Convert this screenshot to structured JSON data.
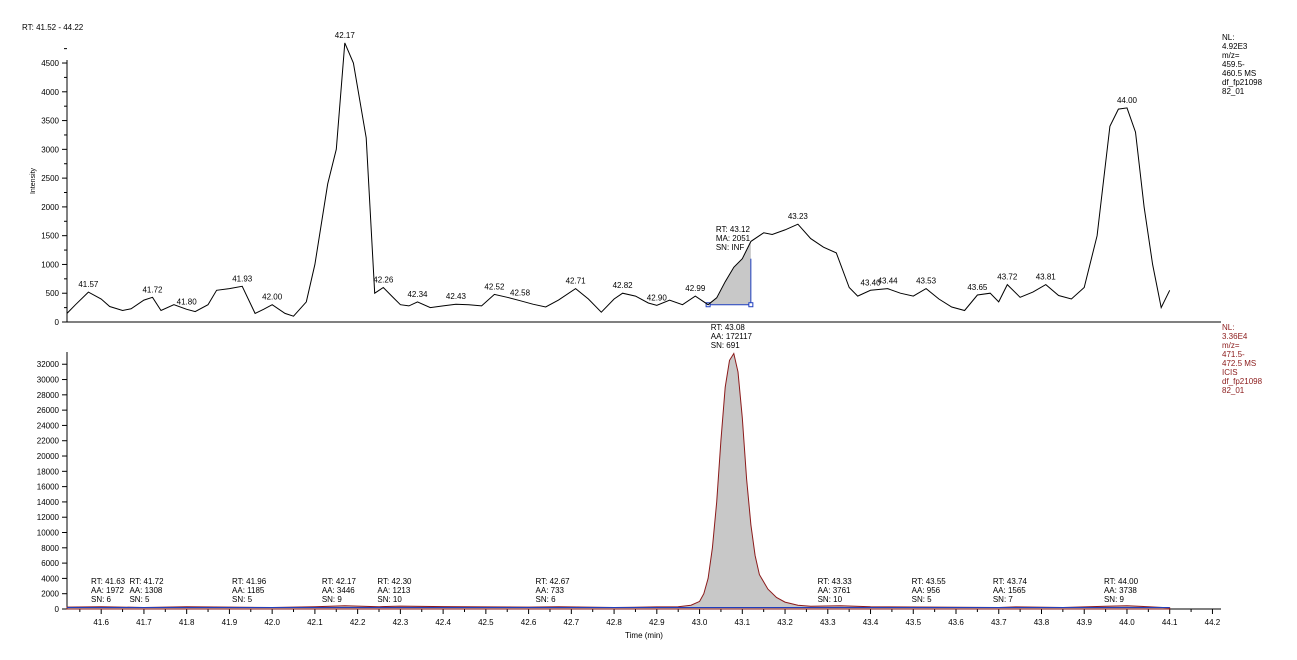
{
  "header": {
    "rt_range": "RT: 41.52 - 44.22"
  },
  "colors": {
    "axis": "#000000",
    "trace": "#000000",
    "fill": "#c8c8c8",
    "fill_edge": "#8b1a1a",
    "baseline": "#1f3fbf",
    "info_top": "#000000",
    "info_bottom": "#8b1a1a"
  },
  "chart_data": [
    {
      "type": "line",
      "ylabel": "Intensity",
      "xlim": [
        41.52,
        44.22
      ],
      "ylim": [
        0,
        4900
      ],
      "yticks": [
        0,
        500,
        1000,
        1500,
        2000,
        2500,
        3000,
        3500,
        4000,
        4500
      ],
      "info": [
        "NL:",
        "4.92E3",
        "m/z=",
        "459.5-",
        "460.5  MS",
        "df_fp21098",
        "82_01"
      ],
      "x": [
        41.52,
        41.54,
        41.57,
        41.6,
        41.62,
        41.65,
        41.67,
        41.7,
        41.72,
        41.74,
        41.77,
        41.8,
        41.82,
        41.85,
        41.87,
        41.9,
        41.93,
        41.96,
        41.98,
        42.0,
        42.03,
        42.05,
        42.08,
        42.1,
        42.13,
        42.15,
        42.17,
        42.19,
        42.22,
        42.24,
        42.26,
        42.28,
        42.3,
        42.32,
        42.34,
        42.37,
        42.4,
        42.43,
        42.46,
        42.49,
        42.52,
        42.55,
        42.58,
        42.61,
        42.64,
        42.67,
        42.71,
        42.74,
        42.77,
        42.8,
        42.82,
        42.85,
        42.88,
        42.9,
        42.93,
        42.96,
        42.99,
        43.02,
        43.04,
        43.06,
        43.08,
        43.1,
        43.12,
        43.15,
        43.17,
        43.2,
        43.23,
        43.26,
        43.29,
        43.32,
        43.35,
        43.37,
        43.4,
        43.44,
        43.47,
        43.5,
        43.53,
        43.56,
        43.59,
        43.62,
        43.65,
        43.68,
        43.7,
        43.72,
        43.75,
        43.78,
        43.81,
        43.84,
        43.87,
        43.9,
        43.93,
        43.96,
        43.98,
        44.0,
        44.02,
        44.04,
        44.06,
        44.08,
        44.1
      ],
      "y": [
        150,
        300,
        520,
        400,
        270,
        200,
        230,
        380,
        430,
        200,
        300,
        220,
        180,
        300,
        550,
        580,
        620,
        150,
        220,
        300,
        150,
        100,
        350,
        1000,
        2400,
        3000,
        4850,
        4500,
        3200,
        500,
        600,
        450,
        300,
        280,
        350,
        250,
        280,
        310,
        300,
        280,
        480,
        430,
        370,
        310,
        260,
        380,
        580,
        400,
        170,
        400,
        500,
        450,
        330,
        290,
        380,
        300,
        450,
        300,
        420,
        700,
        950,
        1100,
        1400,
        1550,
        1520,
        1600,
        1700,
        1450,
        1300,
        1200,
        600,
        450,
        550,
        580,
        500,
        450,
        580,
        400,
        260,
        200,
        470,
        500,
        350,
        650,
        430,
        520,
        650,
        460,
        400,
        600,
        1500,
        3400,
        3700,
        3720,
        3300,
        2000,
        1000,
        250,
        550
      ],
      "peak_labels": [
        [
          41.57,
          "41.57"
        ],
        [
          41.72,
          "41.72"
        ],
        [
          41.8,
          "41.80"
        ],
        [
          41.93,
          "41.93"
        ],
        [
          42.0,
          "42.00"
        ],
        [
          42.17,
          "42.17"
        ],
        [
          42.26,
          "42.26"
        ],
        [
          42.34,
          "42.34"
        ],
        [
          42.43,
          "42.43"
        ],
        [
          42.52,
          "42.52"
        ],
        [
          42.58,
          "42.58"
        ],
        [
          42.71,
          "42.71"
        ],
        [
          42.82,
          "42.82"
        ],
        [
          42.9,
          "42.90"
        ],
        [
          42.99,
          "42.99"
        ],
        [
          43.23,
          "43.23"
        ],
        [
          43.4,
          "43.40"
        ],
        [
          43.44,
          "43.44"
        ],
        [
          43.53,
          "43.53"
        ],
        [
          43.65,
          "43.65"
        ],
        [
          43.72,
          "43.72"
        ],
        [
          43.81,
          "43.81"
        ],
        [
          44.0,
          "44.00"
        ]
      ],
      "integrated_peak": {
        "rt": 43.12,
        "start": 43.02,
        "end": 43.12,
        "lines": [
          "RT: 43.12",
          "MA: 2051",
          "SN: INF"
        ]
      }
    },
    {
      "type": "area",
      "xlabel": "Time (min)",
      "xlim": [
        41.52,
        44.22
      ],
      "ylim": [
        0,
        33600
      ],
      "xticks": [
        41.6,
        41.7,
        41.8,
        41.9,
        42.0,
        42.1,
        42.2,
        42.3,
        42.4,
        42.5,
        42.6,
        42.7,
        42.8,
        42.9,
        43.0,
        43.1,
        43.2,
        43.3,
        43.4,
        43.5,
        43.6,
        43.7,
        43.8,
        43.9,
        44.0,
        44.1,
        44.2
      ],
      "yticks": [
        0,
        2000,
        4000,
        6000,
        8000,
        10000,
        12000,
        14000,
        16000,
        18000,
        20000,
        22000,
        24000,
        26000,
        28000,
        30000,
        32000
      ],
      "info": [
        "NL:",
        "3.36E4",
        "m/z=",
        "471.5-",
        "472.5  MS",
        "ICIS",
        "df_fp21098",
        "82_01"
      ],
      "x": [
        41.52,
        41.6,
        41.7,
        41.8,
        41.9,
        42.0,
        42.1,
        42.17,
        42.25,
        42.3,
        42.4,
        42.5,
        42.6,
        42.67,
        42.8,
        42.9,
        42.95,
        42.98,
        43.0,
        43.01,
        43.02,
        43.03,
        43.04,
        43.05,
        43.06,
        43.07,
        43.08,
        43.09,
        43.1,
        43.11,
        43.12,
        43.13,
        43.14,
        43.16,
        43.18,
        43.2,
        43.23,
        43.26,
        43.33,
        43.4,
        43.55,
        43.7,
        43.74,
        43.85,
        43.95,
        44.0,
        44.05,
        44.1
      ],
      "y": [
        250,
        300,
        200,
        300,
        250,
        200,
        300,
        420,
        300,
        380,
        320,
        280,
        250,
        300,
        200,
        280,
        300,
        500,
        1000,
        2000,
        4000,
        8000,
        14000,
        22000,
        29000,
        32500,
        33400,
        31000,
        25000,
        17000,
        11000,
        7000,
        4500,
        2600,
        1500,
        900,
        500,
        350,
        420,
        300,
        250,
        200,
        280,
        200,
        350,
        420,
        300,
        150
      ],
      "annotations": [
        {
          "rt": 41.63,
          "lines": [
            "RT: 41.63",
            "AA: 1972",
            "SN: 6"
          ]
        },
        {
          "rt": 41.72,
          "lines": [
            "RT: 41.72",
            "AA: 1308",
            "SN: 5"
          ]
        },
        {
          "rt": 41.96,
          "lines": [
            "RT: 41.96",
            "AA: 1185",
            "SN: 5"
          ]
        },
        {
          "rt": 42.17,
          "lines": [
            "RT: 42.17",
            "AA: 3446",
            "SN: 9"
          ]
        },
        {
          "rt": 42.3,
          "lines": [
            "RT: 42.30",
            "AA: 1213",
            "SN: 10"
          ]
        },
        {
          "rt": 42.67,
          "lines": [
            "RT: 42.67",
            "AA: 733",
            "SN: 6"
          ]
        },
        {
          "rt": 43.08,
          "lines": [
            "RT: 43.08",
            "AA: 172117",
            "SN: 691"
          ]
        },
        {
          "rt": 43.33,
          "lines": [
            "RT: 43.33",
            "AA: 3761",
            "SN: 10"
          ]
        },
        {
          "rt": 43.55,
          "lines": [
            "RT: 43.55",
            "AA: 956",
            "SN: 5"
          ]
        },
        {
          "rt": 43.74,
          "lines": [
            "RT: 43.74",
            "AA: 1565",
            "SN: 7"
          ]
        },
        {
          "rt": 44.0,
          "lines": [
            "RT: 44.00",
            "AA: 3738",
            "SN: 9"
          ]
        }
      ]
    }
  ]
}
